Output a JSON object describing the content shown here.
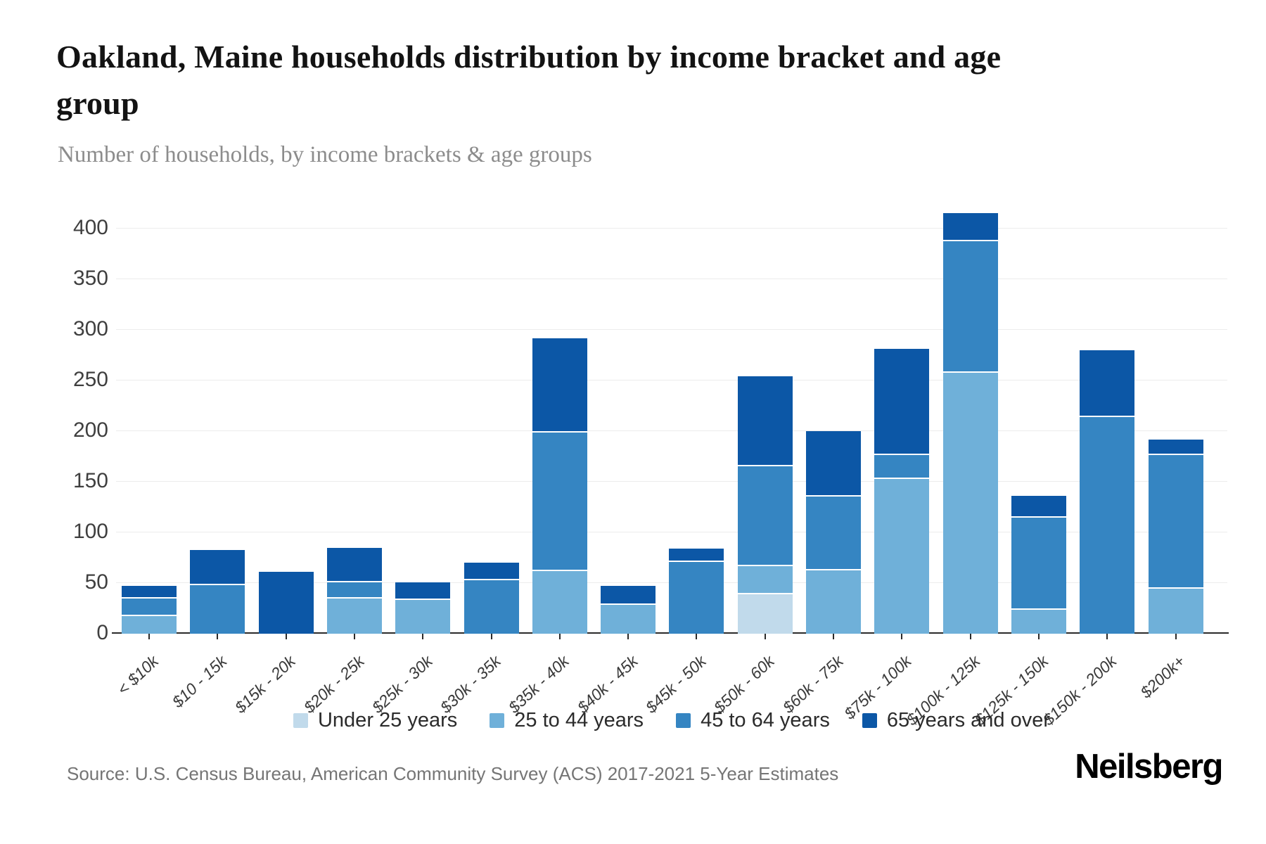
{
  "header": {
    "title_lines": [
      "Oakland, Maine households distribution by income bracket and age",
      "group"
    ],
    "title_full": "Oakland, Maine households distribution by income bracket and age group",
    "subtitle": "Number of households, by income brackets & age groups"
  },
  "chart_data": {
    "type": "bar",
    "stacked": true,
    "title": "Oakland, Maine households distribution by income bracket and age group",
    "subtitle": "Number of households, by income brackets & age groups",
    "categories": [
      "< $10k",
      "$10 - 15k",
      "$15k - 20k",
      "$20k - 25k",
      "$25k - 30k",
      "$30k - 35k",
      "$35k - 40k",
      "$40k - 45k",
      "$45k - 50k",
      "$50k - 60k",
      "$60k - 75k",
      "$75k - 100k",
      "$100k - 125k",
      "$125k - 150k",
      "$150k - 200k",
      "$200k+"
    ],
    "series": [
      {
        "name": "Under 25 years",
        "color": "#c1daeb",
        "values": [
          0,
          0,
          0,
          0,
          0,
          0,
          0,
          0,
          0,
          40,
          0,
          0,
          0,
          0,
          0,
          0
        ]
      },
      {
        "name": "25 to 44 years",
        "color": "#6fb0d9",
        "values": [
          19,
          0,
          0,
          36,
          35,
          0,
          63,
          30,
          0,
          28,
          64,
          154,
          259,
          25,
          0,
          46
        ]
      },
      {
        "name": "45 to 64 years",
        "color": "#3585c2",
        "values": [
          17,
          49,
          0,
          16,
          0,
          54,
          137,
          0,
          72,
          99,
          73,
          24,
          130,
          91,
          215,
          132
        ]
      },
      {
        "name": "65 years and over",
        "color": "#0c57a6",
        "values": [
          11,
          34,
          61,
          33,
          16,
          16,
          92,
          17,
          12,
          87,
          63,
          103,
          26,
          20,
          65,
          14
        ]
      }
    ],
    "totals": [
      47,
      83,
      61,
      85,
      51,
      70,
      292,
      47,
      84,
      254,
      200,
      281,
      415,
      136,
      280,
      192
    ],
    "y_ticks": [
      0,
      50,
      100,
      150,
      200,
      250,
      300,
      350,
      400
    ],
    "ylim": [
      0,
      420
    ],
    "xlabel": "",
    "ylabel": "",
    "grid": true,
    "legend_position": "bottom"
  },
  "legend": {
    "items": [
      {
        "label": "Under 25 years",
        "color": "#c1daeb"
      },
      {
        "label": "25 to 44 years",
        "color": "#6fb0d9"
      },
      {
        "label": "45 to 64 years",
        "color": "#3585c2"
      },
      {
        "label": "65 years and over",
        "color": "#0c57a6"
      }
    ]
  },
  "footer": {
    "source": "Source: U.S. Census Bureau, American Community Survey (ACS) 2017-2021 5-Year Estimates",
    "brand": "Neilsberg"
  }
}
